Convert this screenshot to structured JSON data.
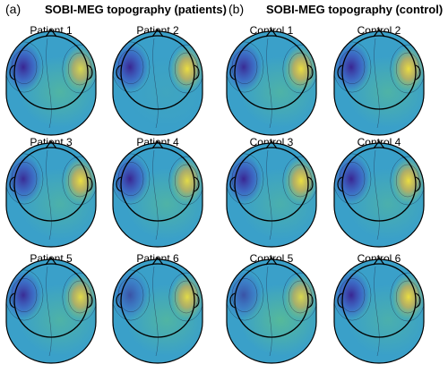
{
  "panels": [
    {
      "letter": "(a)",
      "title": "SOBI-MEG topography (patients)",
      "maps": [
        {
          "label": "Patient 1",
          "blue": 0.95,
          "yellow": 0.85,
          "green": 0.6
        },
        {
          "label": "Patient 2",
          "blue": 0.95,
          "yellow": 0.95,
          "green": 0.15
        },
        {
          "label": "Patient 3",
          "blue": 0.9,
          "yellow": 0.95,
          "green": 0.5
        },
        {
          "label": "Patient 4",
          "blue": 0.95,
          "yellow": 0.9,
          "green": 0.55
        },
        {
          "label": "Patient 5",
          "blue": 0.9,
          "yellow": 0.9,
          "green": 0.55
        },
        {
          "label": "Patient 6",
          "blue": 0.6,
          "yellow": 0.9,
          "green": 0.6
        }
      ]
    },
    {
      "letter": "(b)",
      "title": "SOBI-MEG topography (control)",
      "maps": [
        {
          "label": "Control 1",
          "blue": 0.9,
          "yellow": 0.95,
          "green": 0.55
        },
        {
          "label": "Control 2",
          "blue": 0.95,
          "yellow": 0.95,
          "green": 0.55
        },
        {
          "label": "Control 3",
          "blue": 0.95,
          "yellow": 0.95,
          "green": 0.45
        },
        {
          "label": "Control 4",
          "blue": 0.95,
          "yellow": 0.95,
          "green": 0.45
        },
        {
          "label": "Control 5",
          "blue": 0.6,
          "yellow": 0.85,
          "green": 0.75
        },
        {
          "label": "Control 6",
          "blue": 0.95,
          "yellow": 0.95,
          "green": 0.45
        }
      ]
    }
  ],
  "colors": {
    "low": "#3a1f8e",
    "mid": "#3aa0c9",
    "green": "#5fc28a",
    "high": "#f4e23a",
    "outline": "#000000"
  }
}
